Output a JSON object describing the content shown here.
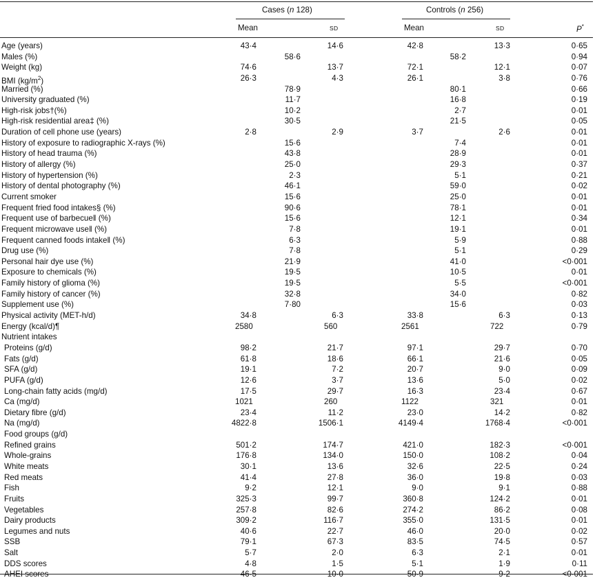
{
  "header": {
    "cases_label": "Cases (",
    "cases_n": "n",
    "cases_count": " 128)",
    "controls_label": "Controls (",
    "controls_n": "n",
    "controls_count": " 256)",
    "mean": "Mean",
    "sd": "SD",
    "p": "P",
    "p_suffix": "*"
  },
  "rows": [
    {
      "label": "Age (years)",
      "cm": "43·4",
      "cs": "14·6",
      "km": "42·8",
      "ks": "13·3",
      "p": "0·65"
    },
    {
      "label": "Males (%)",
      "cp": "58·6",
      "kp": "58·2",
      "p": "0·94"
    },
    {
      "label": "Weight (kg)",
      "cm": "74·6",
      "cs": "13·7",
      "km": "72·1",
      "ks": "12·1",
      "p": "0·07"
    },
    {
      "label": "BMI (kg/m",
      "sup": "2",
      "label_end": ")",
      "cm": "26·3",
      "cs": "4·3",
      "km": "26·1",
      "ks": "3·8",
      "p": "0·76"
    },
    {
      "label": "Married (%)",
      "cp": "78·9",
      "kp": "80·1",
      "p": "0·66"
    },
    {
      "label": "University graduated (%)",
      "cp": "11·7",
      "kp": "16·8",
      "p": "0·19"
    },
    {
      "label": "High-risk jobs†(%)",
      "cp": "10·2",
      "kp": "2·7",
      "p": "0·01"
    },
    {
      "label": "High-risk residential area‡ (%)",
      "cp": "30·5",
      "kp": "21·5",
      "p": "0·05"
    },
    {
      "label": "Duration of cell phone use (years)",
      "cm": "2·8",
      "cs": "2·9",
      "km": "3·7",
      "ks": "2·6",
      "p": "0·01"
    },
    {
      "label": "History of exposure to radiographic X-rays (%)",
      "cp": "15·6",
      "kp": "7·4",
      "p": "0·01"
    },
    {
      "label": "History of head trauma (%)",
      "cp": "43·8",
      "kp": "28·9",
      "p": "0·01"
    },
    {
      "label": "History of allergy (%)",
      "cp": "25·0",
      "kp": "29·3",
      "p": "0·37"
    },
    {
      "label": "History of hypertension (%)",
      "cp": "2·3",
      "kp": "5·1",
      "p": "0·21"
    },
    {
      "label": "History of dental photography (%)",
      "cp": "46·1",
      "kp": "59·0",
      "p": "0·02"
    },
    {
      "label": "Current smoker",
      "cp": "15·6",
      "kp": "25·0",
      "p": "0·01"
    },
    {
      "label": "Frequent fried food intakes§ (%)",
      "cp": "90·6",
      "kp": "78·1",
      "p": "0·01"
    },
    {
      "label": "Frequent use of barbecue‖ (%)",
      "cp": "15·6",
      "kp": "12·1",
      "p": "0·34"
    },
    {
      "label": "Frequent microwave use‖ (%)",
      "cp": "7·8",
      "kp": "19·1",
      "p": "0·01"
    },
    {
      "label": "Frequent canned foods intake‖ (%)",
      "cp": "6·3",
      "kp": "5·9",
      "p": "0·88"
    },
    {
      "label": "Drug use (%)",
      "cp": "7·8",
      "kp": "5·1",
      "p": "0·29"
    },
    {
      "label": "Personal hair dye use (%)",
      "cp": "21·9",
      "kp": "41·0",
      "p": "<0·001"
    },
    {
      "label": "Exposure to chemicals (%)",
      "cp": "19·5",
      "kp": "10·5",
      "p": "0·01"
    },
    {
      "label": "Family history of glioma (%)",
      "cp": "19·5",
      "kp": "5·5",
      "p": "<0·001"
    },
    {
      "label": "Family history of cancer (%)",
      "cp": "32·8",
      "kp": "34·0",
      "p": "0·82"
    },
    {
      "label": "Supplement use (%)",
      "cp": "7·80",
      "kp": "15·6",
      "p": "0·03"
    },
    {
      "label": "Physical activity (MET-h/d)",
      "cm": "34·8",
      "cs": "6·3",
      "km": "33·8",
      "ks": "6·3",
      "p": "0·13"
    },
    {
      "label": "Energy (kcal/d)¶",
      "cm": "2580",
      "cs": "560",
      "km": "2561",
      "ks": "722",
      "p": "0·79",
      "left_align": true
    },
    {
      "label": "Nutrient intakes"
    },
    {
      "label": "Proteins (g/d)",
      "indent": true,
      "cm": "98·2",
      "cs": "21·7",
      "km": "97·1",
      "ks": "29·7",
      "p": "0·70"
    },
    {
      "label": "Fats (g/d)",
      "indent": true,
      "cm": "61·8",
      "cs": "18·6",
      "km": "66·1",
      "ks": "21·6",
      "p": "0·05"
    },
    {
      "label": "SFA (g/d)",
      "indent": true,
      "cm": "19·1",
      "cs": "7·2",
      "km": "20·7",
      "ks": "9·0",
      "p": "0·09"
    },
    {
      "label": "PUFA (g/d)",
      "indent": true,
      "cm": "12·6",
      "cs": "3·7",
      "km": "13·6",
      "ks": "5·0",
      "p": "0·02"
    },
    {
      "label": "Long-chain fatty acids (mg/d)",
      "indent": true,
      "cm": "17·5",
      "cs": "29·7",
      "km": "16·3",
      "ks": "23·4",
      "p": "0·67"
    },
    {
      "label": "Ca (mg/d)",
      "indent": true,
      "cm": "1021",
      "cs": "260",
      "km": "1122",
      "ks": "321",
      "p": "0·01",
      "left_align": true
    },
    {
      "label": "Dietary fibre (g/d)",
      "indent": true,
      "cm": "23·4",
      "cs": "11·2",
      "km": "23·0",
      "ks": "14·2",
      "p": "0·82"
    },
    {
      "label": "Na (mg/d)",
      "indent": true,
      "cm": "4822·8",
      "cs": "1506·1",
      "km": "4149·4",
      "ks": "1768·4",
      "p": "<0·001"
    },
    {
      "label": "Food groups (g/d)",
      "indent": true
    },
    {
      "label": "Refined grains",
      "indent": true,
      "cm": "501·2",
      "cs": "174·7",
      "km": "421·0",
      "ks": "182·3",
      "p": "<0·001"
    },
    {
      "label": "Whole-grains",
      "indent": true,
      "cm": "176·8",
      "cs": "134·0",
      "km": "150·0",
      "ks": "108·2",
      "p": "0·04"
    },
    {
      "label": "White meats",
      "indent": true,
      "cm": "30·1",
      "cs": "13·6",
      "km": "32·6",
      "ks": "22·5",
      "p": "0·24"
    },
    {
      "label": "Red meats",
      "indent": true,
      "cm": "41·4",
      "cs": "27·8",
      "km": "36·0",
      "ks": "19·8",
      "p": "0·03"
    },
    {
      "label": "Fish",
      "indent": true,
      "cm": "9·2",
      "cs": "12·1",
      "km": "9·0",
      "ks": "9·1",
      "p": "0·88"
    },
    {
      "label": "Fruits",
      "indent": true,
      "cm": "325·3",
      "cs": "99·7",
      "km": "360·8",
      "ks": "124·2",
      "p": "0·01"
    },
    {
      "label": "Vegetables",
      "indent": true,
      "cm": "257·8",
      "cs": "82·6",
      "km": "274·2",
      "ks": "86·2",
      "p": "0·08"
    },
    {
      "label": "Dairy products",
      "indent": true,
      "cm": "309·2",
      "cs": "116·7",
      "km": "355·0",
      "ks": "131·5",
      "p": "0·01"
    },
    {
      "label": "Legumes and nuts",
      "indent": true,
      "cm": "40·6",
      "cs": "22·7",
      "km": "46·0",
      "ks": "20·0",
      "p": "0·02"
    },
    {
      "label": "SSB",
      "indent": true,
      "cm": "79·1",
      "cs": "67·3",
      "km": "83·5",
      "ks": "74·5",
      "p": "0·57"
    },
    {
      "label": "Salt",
      "indent": true,
      "cm": "5·7",
      "cs": "2·0",
      "km": "6·3",
      "ks": "2·1",
      "p": "0·01"
    },
    {
      "label": "DDS scores",
      "indent": true,
      "cm": "4·8",
      "cs": "1·5",
      "km": "5·1",
      "ks": "1·9",
      "p": "0·11"
    },
    {
      "label": "AHEI scores",
      "indent": true,
      "cm": "46·5",
      "cs": "10·0",
      "km": "50·9",
      "ks": "9·2",
      "p": "<0·001"
    }
  ]
}
